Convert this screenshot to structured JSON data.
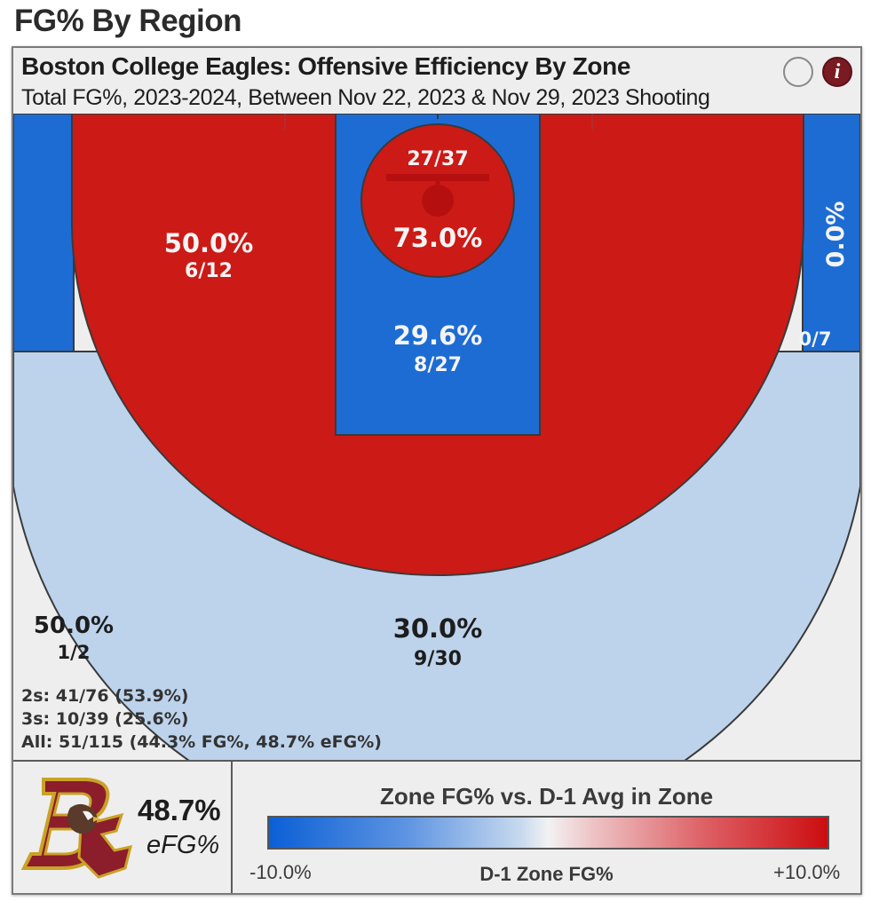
{
  "page_heading": "FG% By Region",
  "card": {
    "title": "Boston College Eagles: Offensive Efficiency By Zone",
    "subtitle": "Total FG%, 2023-2024, Between Nov 22, 2023 & Nov 29, 2023 Shooting",
    "info_button_label": "i"
  },
  "colors": {
    "above_avg": "#cc1a16",
    "below_avg": "#1d6cd4",
    "slightly_below": "#bdd3ec",
    "neutral": "#eeeeee",
    "court_lines": "#3a3a3a"
  },
  "chart_data": {
    "type": "heatmap",
    "zones": [
      {
        "zone": "restricted-area",
        "pct": "73.0%",
        "made_attempts": "27/37",
        "relative": "above"
      },
      {
        "zone": "paint",
        "pct": "29.6%",
        "made_attempts": "8/27",
        "relative": "below"
      },
      {
        "zone": "mid-range",
        "pct": "50.0%",
        "made_attempts": "6/12",
        "relative": "above"
      },
      {
        "zone": "right-corner-three",
        "pct": "0.0%",
        "made_attempts": "0/7",
        "relative": "below"
      },
      {
        "zone": "above-break-three",
        "pct": "30.0%",
        "made_attempts": "9/30",
        "relative": "slightly-below"
      },
      {
        "zone": "left-deep",
        "pct": "50.0%",
        "made_attempts": "1/2",
        "relative": "neutral"
      }
    ],
    "summary": {
      "twos": "2s: 41/76 (53.9%)",
      "threes": "3s: 10/39 (25.6%)",
      "all": "All: 51/115 (44.3% FG%, 48.7% eFG%)"
    },
    "efg": {
      "value": "48.7%",
      "label": "eFG%"
    },
    "legend": {
      "title": "Zone FG% vs. D-1 Avg in Zone",
      "min_label": "-10.0%",
      "max_label": "+10.0%",
      "axis_label": "D-1 Zone FG%",
      "min_color": "#0b5fd6",
      "mid_color": "#f2f2f2",
      "max_color": "#cc0d10"
    }
  }
}
